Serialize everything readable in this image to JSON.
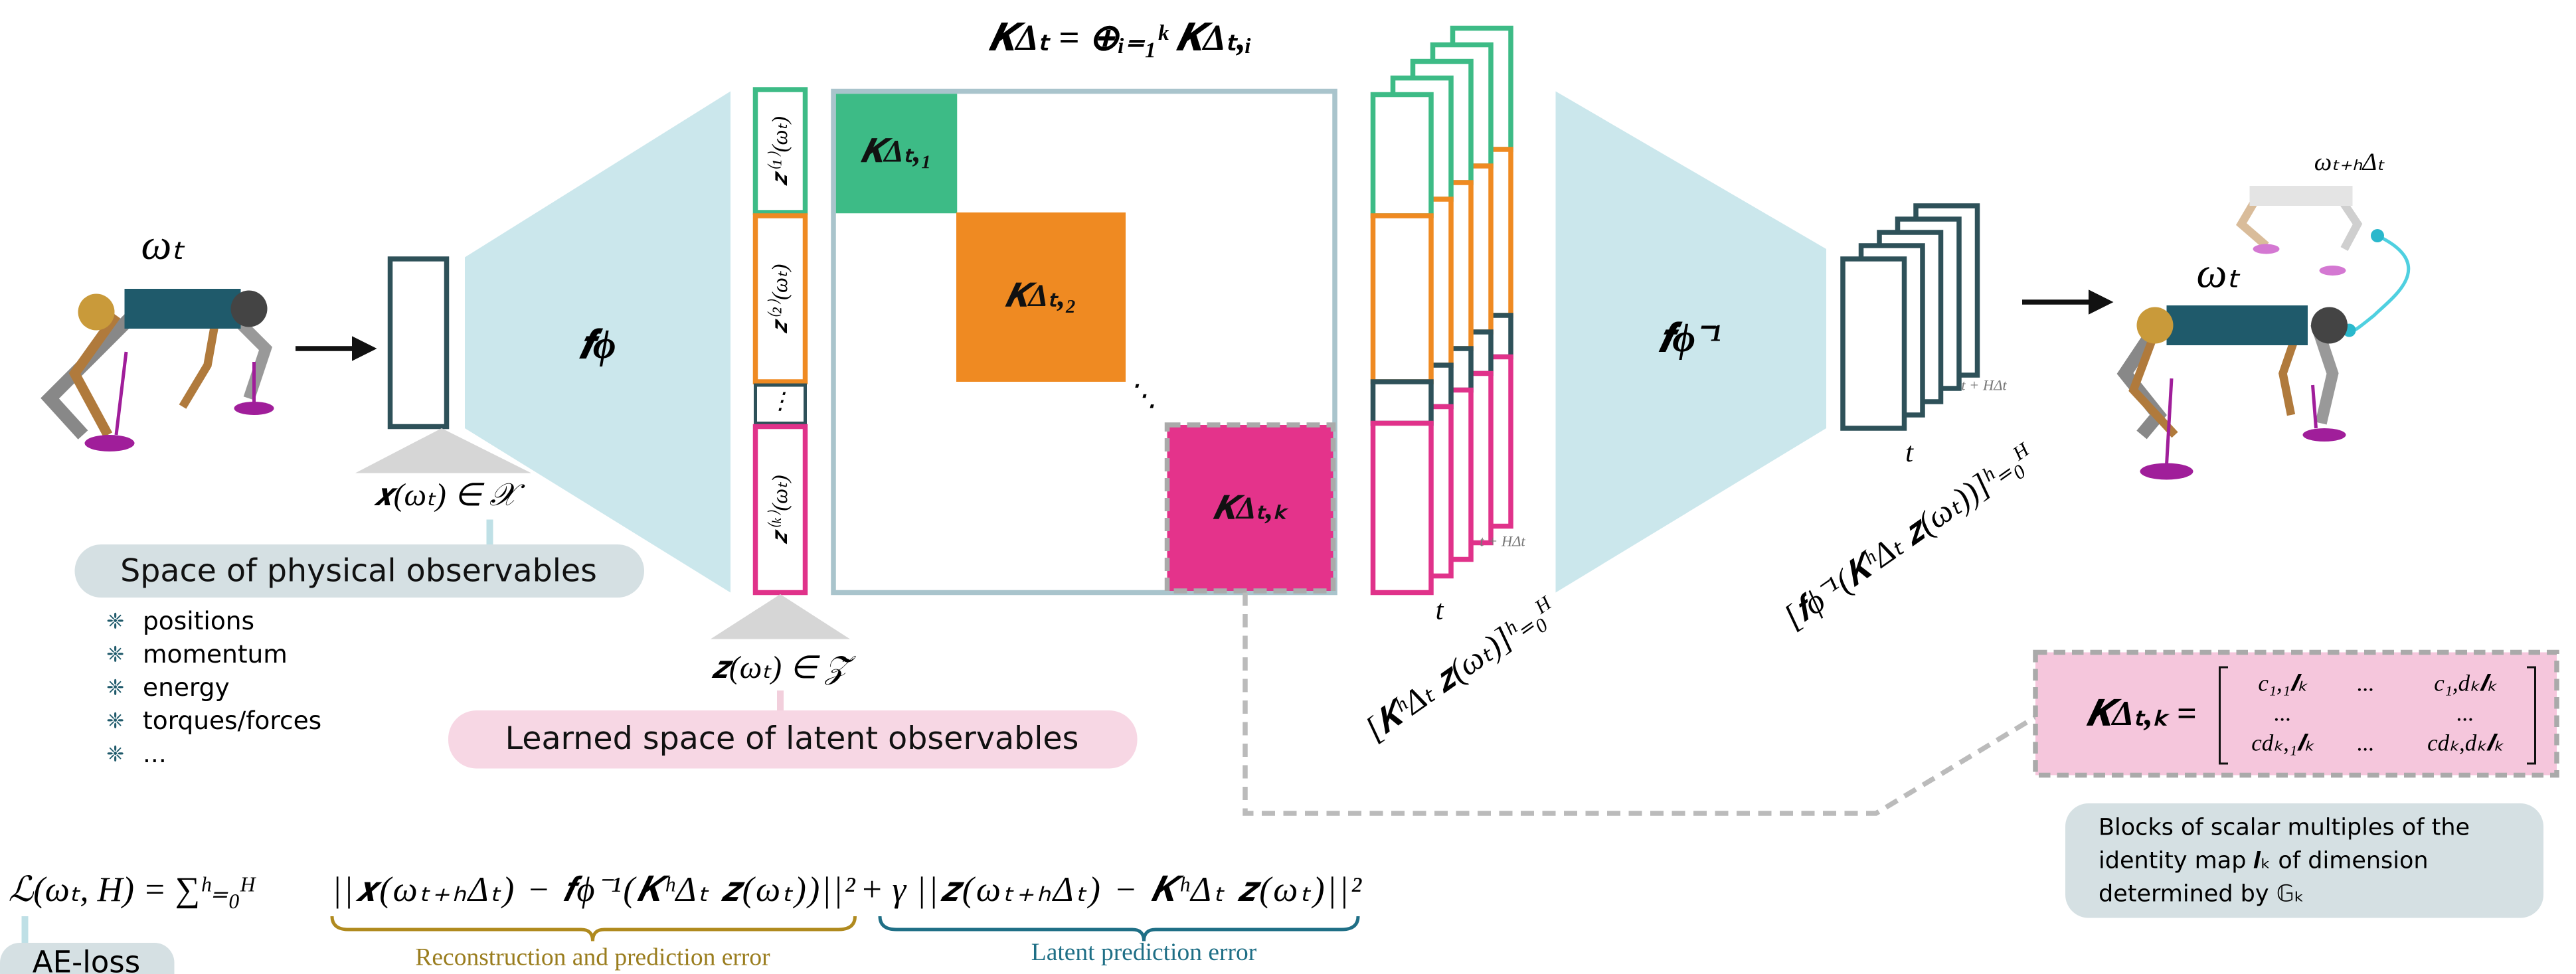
{
  "title": "𝑲Δₜ = ⊕ᵢ₌₁ᵏ 𝑲Δₜ,ᵢ",
  "input": {
    "state": "ωₜ",
    "observable": "𝒙(ωₜ) ∈ 𝒳"
  },
  "physical_space": {
    "label": "Space of physical observables",
    "items": [
      "positions",
      "momentum",
      "energy",
      "torques/forces",
      "..."
    ]
  },
  "encoder": {
    "label": "𝒇ϕ"
  },
  "latent": {
    "blocks": [
      "𝒛⁽¹⁾(ωₜ)",
      "𝒛⁽²⁾(ωₜ)",
      "⋮",
      "𝒛⁽ᵏ⁾(ωₜ)"
    ],
    "space": "𝒛(ωₜ) ∈ 𝒵̃",
    "label": "Learned space of latent observables"
  },
  "operator": {
    "blocks": [
      "𝑲Δₜ,₁",
      "𝑲Δₜ,₂",
      "𝑲Δₜ,ₖ"
    ],
    "ellipsis": "⋱"
  },
  "latent_rollout": {
    "t_start": "t",
    "t_end": "t + HΔt",
    "label": "[𝑲ʰΔₜ 𝒛(ωₜ)]ʰ₌₀ᴴ"
  },
  "decoder": {
    "label": "𝒇ϕ⁻¹"
  },
  "state_rollout": {
    "t_start": "t",
    "t_end": "t + HΔt",
    "label": "[𝒇ϕ⁻¹(𝑲ʰΔₜ 𝒛(ωₜ))]ʰ₌₀ᴴ"
  },
  "output": {
    "future_state": "ωₜ₊ₕΔₜ",
    "state": "ωₜ"
  },
  "block_detail": {
    "lhs": "𝑲Δₜ,ₖ =",
    "rows": [
      [
        "c₁,₁𝑰ₖ",
        "...",
        "c₁,dₖ𝑰ₖ"
      ],
      [
        "...",
        "",
        "..."
      ],
      [
        "cdₖ,₁𝑰ₖ",
        "...",
        "cdₖ,dₖ𝑰ₖ"
      ]
    ]
  },
  "block_note": [
    "Blocks of scalar multiples of the",
    "identity map  𝑰ₖ  of dimension",
    "determined by  𝔾ₖ"
  ],
  "loss": {
    "lhs": "ℒ(ωₜ, H) = ∑ʰ₌₀ᴴ",
    "term1": "||𝒙(ωₜ₊ₕΔₜ) − 𝒇ϕ⁻¹(𝑲ʰΔₜ 𝒛(ωₜ))||²",
    "plus": "+ γ",
    "term2": "||𝒛(ωₜ₊ₕΔₜ) − 𝑲ʰΔₜ 𝒛(ωₜ)||²",
    "term1_label": "Reconstruction and prediction error",
    "term2_label": "Latent prediction error",
    "name": "AE-loss"
  }
}
